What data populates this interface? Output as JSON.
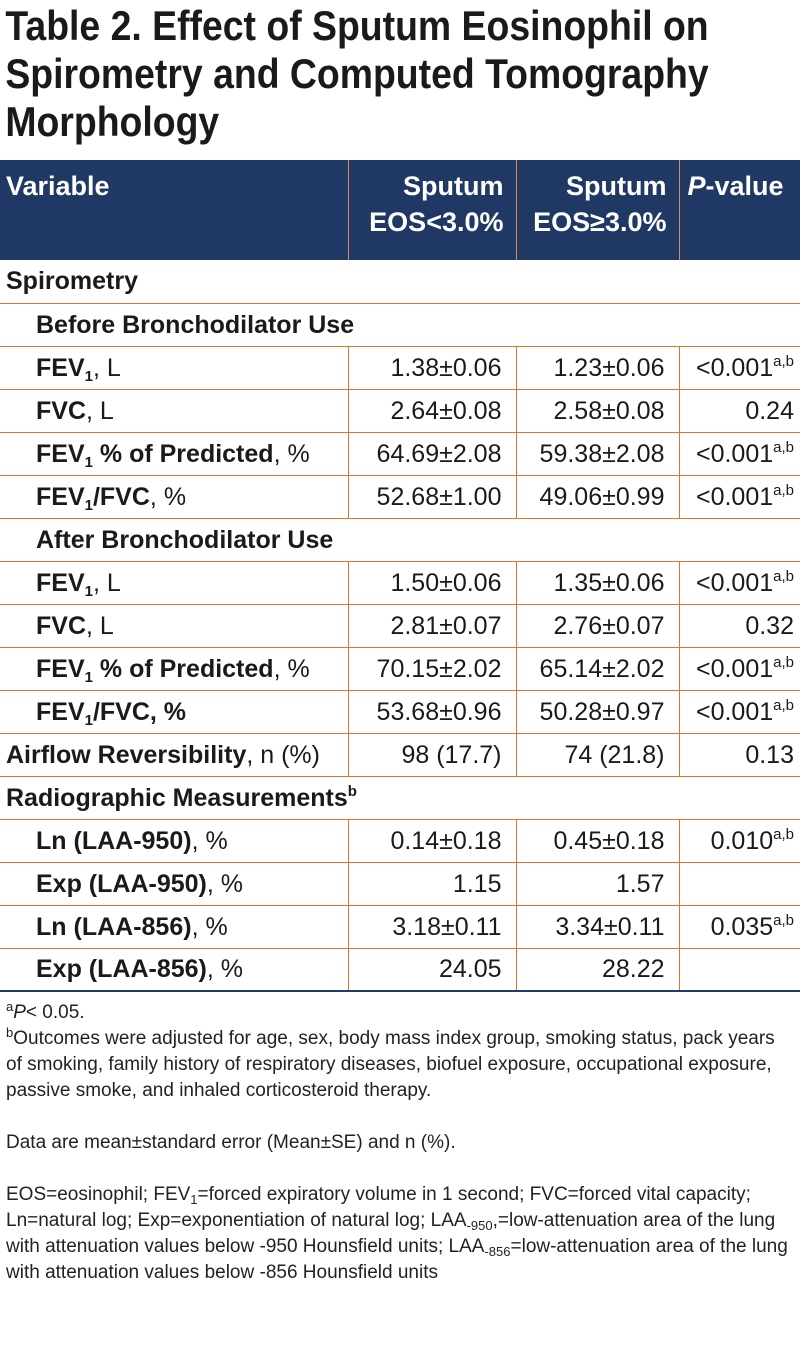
{
  "title": "Table 2. Effect of Sputum Eosinophil on Spirometry and Computed Tomography Morphology",
  "header": {
    "variable": "Variable",
    "col_low_1": "Sputum",
    "col_low_2": "EOS<3.0%",
    "col_high_1": "Sputum",
    "col_high_2": "EOS≥3.0%",
    "pvalue_italic": "P",
    "pvalue_rest": "-value"
  },
  "sections": {
    "spirometry": "Spirometry",
    "before": "Before Bronchodilator Use",
    "after": "After Bronchodilator Use",
    "radiographic": "Radiographic Measurements",
    "radiographic_sup": "b"
  },
  "rows": {
    "before_fev1": {
      "name": "FEV",
      "sub": "1",
      "unit": ", L",
      "low": "1.38±0.06",
      "high": "1.23±0.06",
      "p": "<0.001",
      "p_sup": "a,b"
    },
    "before_fvc": {
      "name": "FVC",
      "unit": ", L",
      "low": "2.64±0.08",
      "high": "2.58±0.08",
      "p": "0.24"
    },
    "before_fev1_pred": {
      "name": "FEV",
      "sub": "1",
      "name2": " % of Predicted",
      "unit": ", %",
      "low": "64.69±2.08",
      "high": "59.38±2.08",
      "p": "<0.001",
      "p_sup": "a,b"
    },
    "before_fev1_fvc": {
      "name": "FEV",
      "sub": "1",
      "name2": "/FVC",
      "unit": ", %",
      "low": "52.68±1.00",
      "high": "49.06±0.99",
      "p": "<0.001",
      "p_sup": "a,b"
    },
    "after_fev1": {
      "name": "FEV",
      "sub": "1",
      "unit": ", L",
      "low": "1.50±0.06",
      "high": "1.35±0.06",
      "p": "<0.001",
      "p_sup": "a,b"
    },
    "after_fvc": {
      "name": "FVC",
      "unit": ", L",
      "low": "2.81±0.07",
      "high": "2.76±0.07",
      "p": "0.32"
    },
    "after_fev1_pred": {
      "name": "FEV",
      "sub": "1",
      "name2": " % of Predicted",
      "unit": ", %",
      "low": "70.15±2.02",
      "high": "65.14±2.02",
      "p": "<0.001",
      "p_sup": "a,b"
    },
    "after_fev1_fvc": {
      "name": "FEV",
      "sub": "1",
      "name2": "/FVC, %",
      "low": "53.68±0.96",
      "high": "50.28±0.97",
      "p": "<0.001",
      "p_sup": "a,b"
    },
    "airflow": {
      "name": "Airflow Reversibility",
      "unit": ", n (%)",
      "low": "98 (17.7)",
      "high": "74 (21.8)",
      "p": "0.13"
    },
    "ln950": {
      "name": "Ln (LAA-950)",
      "unit": ", %",
      "low": "0.14±0.18",
      "high": "0.45±0.18",
      "p": "0.010",
      "p_sup": "a,b"
    },
    "exp950": {
      "name": "Exp (LAA-950)",
      "unit": ", %",
      "low": "1.15",
      "high": "1.57",
      "p": ""
    },
    "ln856": {
      "name": "Ln (LAA-856)",
      "unit": ", %",
      "low": "3.18±0.11",
      "high": "3.34±0.11",
      "p": "0.035",
      "p_sup": "a,b"
    },
    "exp856": {
      "name": "Exp (LAA-856)",
      "unit": ", %",
      "low": "24.05",
      "high": "28.22",
      "p": ""
    }
  },
  "footnotes": {
    "a_sup": "a",
    "a_italic": "P",
    "a_text": "< 0.05.",
    "b_sup": "b",
    "b_text": "Outcomes were adjusted for age, sex, body mass index group, smoking status, pack years of smoking, family history of respiratory diseases, biofuel exposure, occupational exposure, passive smoke, and inhaled corticosteroid therapy.",
    "data_note": "Data are mean±standard error (Mean±SE) and n (%).",
    "abbr_1": "EOS=eosinophil; FEV",
    "abbr_1_sub": "1",
    "abbr_2": "=forced expiratory volume in 1 second; FVC=forced vital capacity; Ln=natural log; Exp=exponentiation of natural log; LAA",
    "abbr_2_sub": "-950",
    "abbr_3": ",=low-attenuation area of the lung with attenuation values below -950 Hounsfield units; LAA",
    "abbr_3_sub": "-856",
    "abbr_4": "=low-attenuation area of the lung with attenuation values below -856 Hounsfield units"
  },
  "colors": {
    "header_bg": "#1f3864",
    "rule": "#e0732e"
  }
}
